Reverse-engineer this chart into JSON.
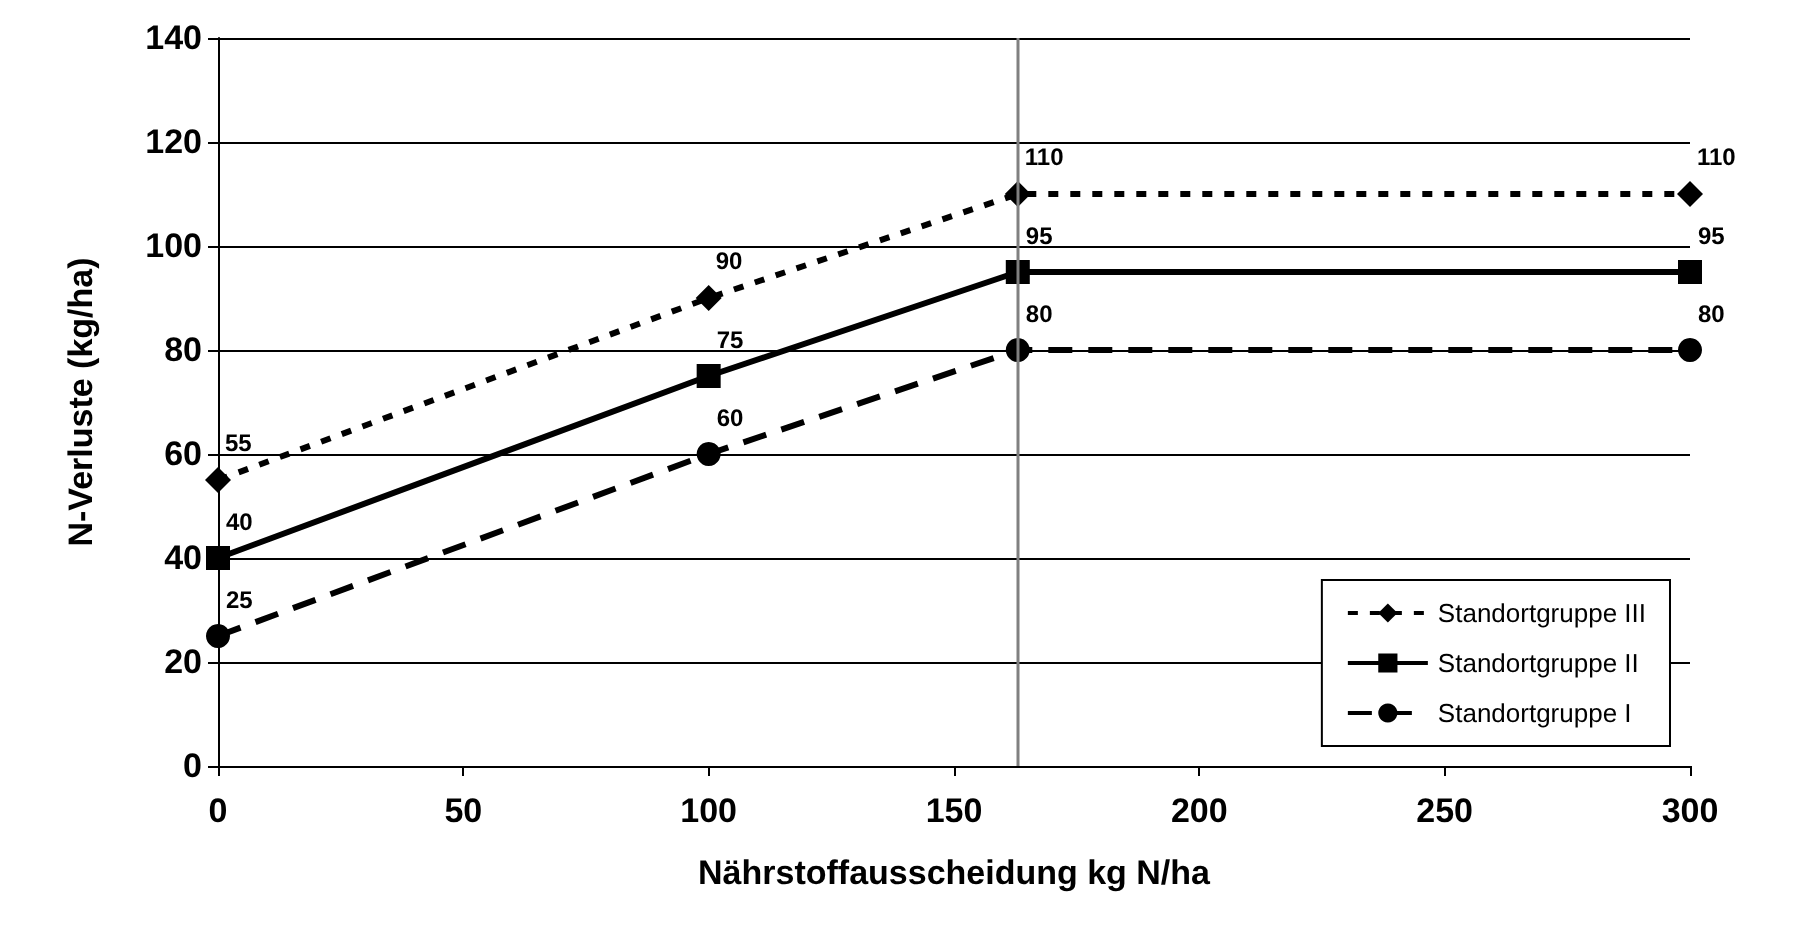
{
  "chart_data": {
    "type": "line",
    "xlabel": "Nährstoffausscheidung kg N/ha",
    "ylabel": "N-Verluste (kg/ha)",
    "x": [
      0,
      100,
      163,
      300
    ],
    "series": [
      {
        "name": "Standortgruppe III",
        "color": "#000000",
        "values": [
          55,
          90,
          110,
          110
        ],
        "marker": "diamond",
        "line_style": "dotted"
      },
      {
        "name": "Standortgruppe II",
        "color": "#000000",
        "values": [
          40,
          75,
          95,
          95
        ],
        "marker": "square",
        "line_style": "solid"
      },
      {
        "name": "Standortgruppe I",
        "color": "#000000",
        "values": [
          25,
          60,
          80,
          80
        ],
        "marker": "circle",
        "line_style": "dashed"
      }
    ],
    "xlim": [
      0,
      300
    ],
    "xticks": [
      0,
      50,
      100,
      150,
      200,
      250,
      300
    ],
    "ylim": [
      0,
      140
    ],
    "yticks": [
      0,
      20,
      40,
      60,
      80,
      100,
      120,
      140
    ],
    "grid": "y",
    "legend": "bottom right",
    "data_labels": true,
    "ref_lines": [
      {
        "axis": "x",
        "value": 163,
        "color": "#808080"
      }
    ]
  }
}
